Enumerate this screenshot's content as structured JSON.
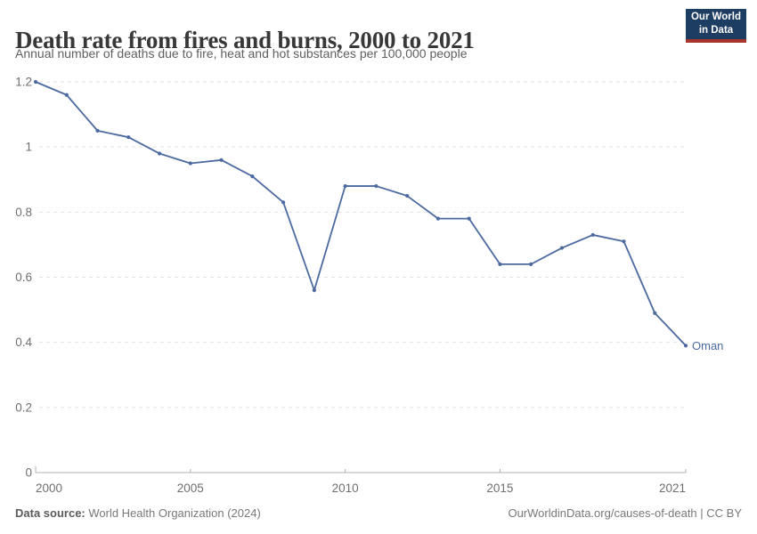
{
  "header": {
    "title": "Death rate from fires and burns, 2000 to 2021",
    "subtitle": "Annual number of deaths due to fire, heat and hot substances per 100,000 people",
    "logo": {
      "line1": "Our World",
      "line2": "in Data",
      "bg_color": "#1d3d63",
      "accent_color": "#a8342c"
    }
  },
  "chart_data": {
    "type": "line",
    "title": "Death rate from fires and burns, 2000 to 2021",
    "xlabel": "",
    "ylabel": "Annual deaths due to fire, heat and hot substances per 100,000 people",
    "x": [
      2000,
      2001,
      2002,
      2003,
      2004,
      2005,
      2006,
      2007,
      2008,
      2009,
      2010,
      2011,
      2012,
      2013,
      2014,
      2015,
      2016,
      2017,
      2018,
      2019,
      2020,
      2021
    ],
    "series": [
      {
        "name": "Oman",
        "color": "#4c6a9f",
        "values": [
          1.2,
          1.16,
          1.05,
          1.03,
          0.98,
          0.95,
          0.96,
          0.91,
          0.83,
          0.56,
          0.88,
          0.88,
          0.85,
          0.78,
          0.78,
          0.64,
          0.64,
          0.69,
          0.73,
          0.71,
          0.49,
          0.39
        ]
      }
    ],
    "ylim": [
      0,
      1.2
    ],
    "yticks": [
      0,
      0.2,
      0.4,
      0.6,
      0.8,
      1,
      1.2
    ],
    "ytick_labels": [
      "0",
      "0.2",
      "0.4",
      "0.6",
      "0.8",
      "1",
      "1.2"
    ],
    "xticks": [
      2000,
      2005,
      2010,
      2015,
      2021
    ],
    "grid": "horizontal-dashed",
    "legend_position": "end-of-line-label"
  },
  "footer": {
    "source_label": "Data source:",
    "source_value": " World Health Organization (2024)",
    "credit": "OurWorldinData.org/causes-of-death | CC BY"
  }
}
